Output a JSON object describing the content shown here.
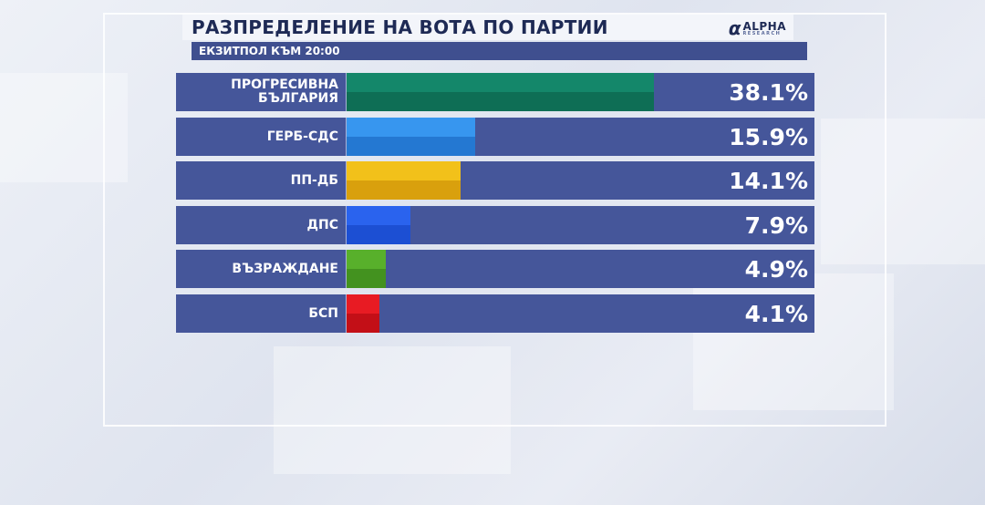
{
  "header": {
    "title": "РАЗПРЕДЕЛЕНИЕ НА ВОТА ПО ПАРТИИ",
    "subtitle": "ЕКЗИТПОЛ КЪМ 20:00",
    "logo_main": "ALPHA",
    "logo_sub": "RESEARCH"
  },
  "colors": {
    "row_bg": "#45569a",
    "subtitle_bg": "#3f4f8f",
    "title_text": "#1e2a55"
  },
  "chart_data": {
    "type": "bar",
    "orientation": "horizontal",
    "title": "РАЗПРЕДЕЛЕНИЕ НА ВОТА ПО ПАРТИИ",
    "subtitle": "ЕКЗИТПОЛ КЪМ 20:00",
    "unit": "%",
    "xlim": [
      0,
      58
    ],
    "categories": [
      [
        "ПРОГРЕСИВНА",
        "БЪЛГАРИЯ"
      ],
      [
        "ГЕРБ-СДС"
      ],
      [
        "ПП-ДБ"
      ],
      [
        "ДПС"
      ],
      [
        "ВЪЗРАЖДАНЕ"
      ],
      [
        "БСП"
      ]
    ],
    "values": [
      38.1,
      15.9,
      14.1,
      7.9,
      4.9,
      4.1
    ],
    "value_labels": [
      "38.1%",
      "15.9%",
      "14.1%",
      "7.9%",
      "4.9%",
      "4.1%"
    ],
    "bar_colors": [
      [
        "#14876a",
        "#0e6e55"
      ],
      [
        "#3796ef",
        "#2478d2"
      ],
      [
        "#f2c11a",
        "#d9a00d"
      ],
      [
        "#2a63ee",
        "#1c4fd3"
      ],
      [
        "#58b02b",
        "#43921f"
      ],
      [
        "#e81b23",
        "#c30f17"
      ]
    ]
  }
}
